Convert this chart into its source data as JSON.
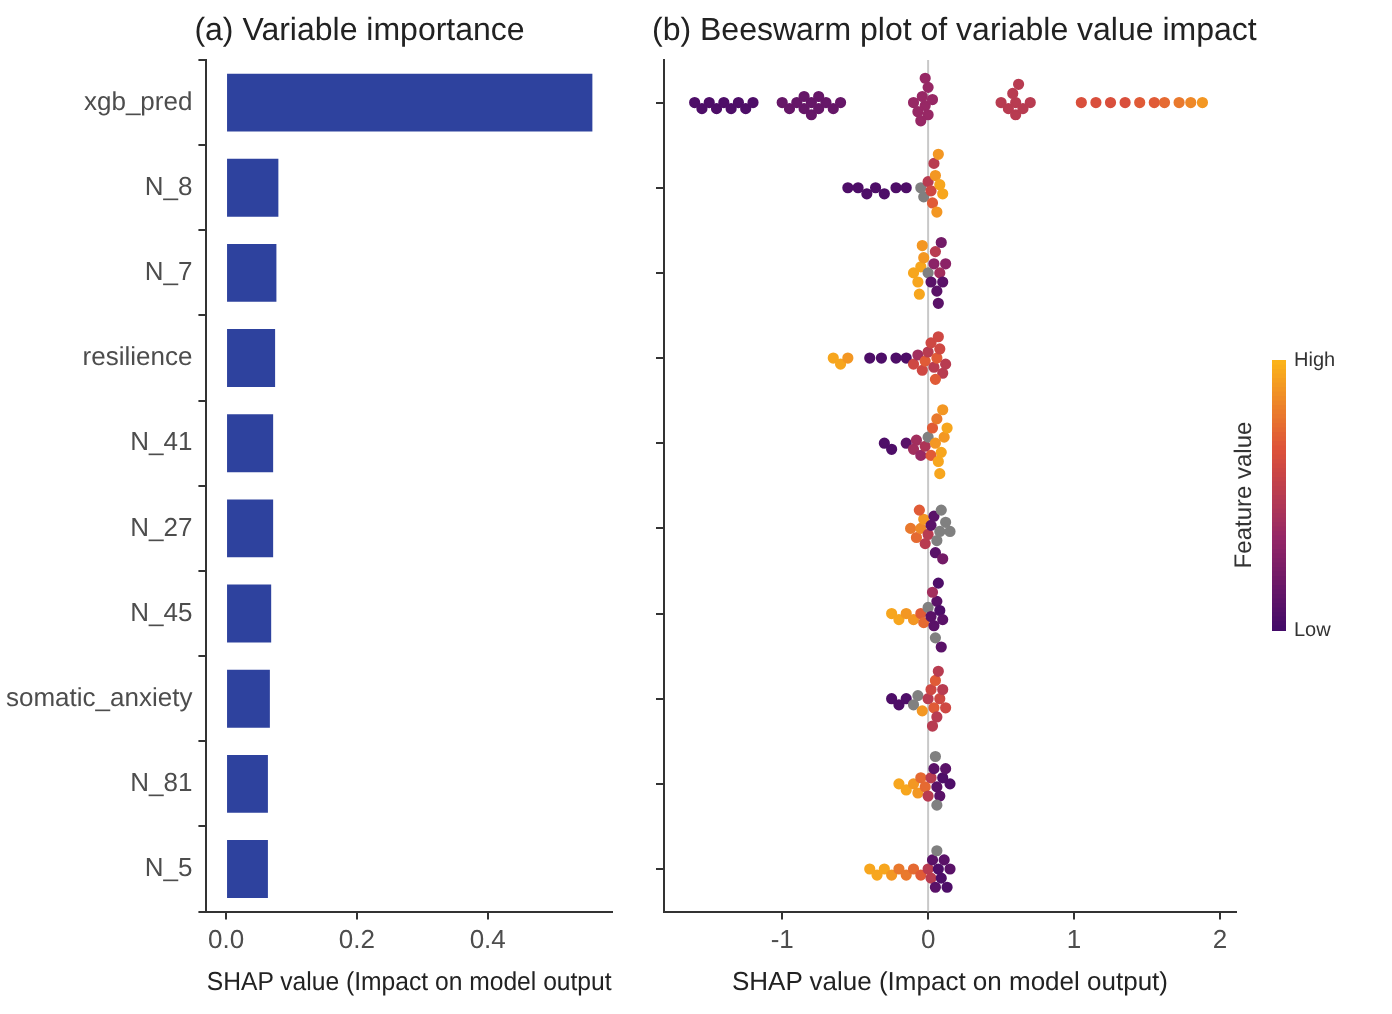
{
  "chart_data": [
    {
      "type": "bar",
      "title": "(a) Variable importance",
      "orientation": "horizontal",
      "categories": [
        "xgb_pred",
        "N_8",
        "N_7",
        "resilience",
        "N_41",
        "N_27",
        "N_45",
        "somatic_anxiety",
        "N_81",
        "N_5"
      ],
      "values": [
        0.56,
        0.08,
        0.077,
        0.075,
        0.072,
        0.072,
        0.069,
        0.067,
        0.064,
        0.064
      ],
      "color": "#2e429e",
      "xlabel": "SHAP value (Impact on model output",
      "xlim": [
        -0.03,
        0.59
      ],
      "xticks": [
        {
          "value": 0,
          "label": "0.0"
        },
        {
          "value": 0.2,
          "label": "0.2"
        },
        {
          "value": 0.4,
          "label": "0.4"
        }
      ],
      "grid": false,
      "legend": false
    },
    {
      "type": "scatter",
      "title": "(b) Beeswarm plot of variable value impact",
      "orientation": "horizontal",
      "categories": [
        "xgb_pred",
        "N_8",
        "N_7",
        "resilience",
        "N_41",
        "N_27",
        "N_45",
        "somatic_anxiety",
        "N_81",
        "N_5"
      ],
      "tick_labels": "x",
      "xlabel": "SHAP value (Impact on model output)",
      "xlim": [
        -1.81,
        2.11
      ],
      "xticks": [
        -1,
        0,
        1,
        2
      ],
      "grid": false,
      "legend": false,
      "marker": "circle",
      "clabel": "Feature value",
      "clim": [
        0,
        1
      ],
      "cticks": [
        {
          "value": 0,
          "label": "Low"
        },
        {
          "value": 1,
          "label": "High"
        }
      ],
      "ref_lines": [
        {
          "axis": "x",
          "value": 0,
          "color": "#c8c8c8"
        }
      ],
      "series": [
        {
          "type": "scatter",
          "x": [
            "xgb_pred",
            "xgb_pred",
            "xgb_pred",
            "xgb_pred",
            "xgb_pred",
            "xgb_pred",
            "xgb_pred",
            "xgb_pred",
            "xgb_pred",
            "xgb_pred",
            "xgb_pred",
            "xgb_pred",
            "xgb_pred",
            "xgb_pred",
            "xgb_pred",
            "xgb_pred",
            "xgb_pred",
            "xgb_pred",
            "xgb_pred",
            "xgb_pred",
            "xgb_pred",
            "xgb_pred",
            "xgb_pred",
            "xgb_pred",
            "xgb_pred",
            "xgb_pred",
            "xgb_pred",
            "xgb_pred",
            "xgb_pred",
            "xgb_pred",
            "xgb_pred",
            "xgb_pred",
            "xgb_pred",
            "xgb_pred",
            "xgb_pred",
            "xgb_pred",
            "xgb_pred",
            "xgb_pred",
            "xgb_pred",
            "xgb_pred",
            "xgb_pred",
            "xgb_pred",
            "xgb_pred",
            "xgb_pred",
            "xgb_pred",
            "xgb_pred",
            "xgb_pred",
            "xgb_pred",
            "N_8",
            "N_8",
            "N_8",
            "N_8",
            "N_8",
            "N_8",
            "N_8",
            "N_8",
            "N_8",
            "N_8",
            "N_8",
            "N_8",
            "N_8",
            "N_8",
            "N_8",
            "N_8",
            "N_8",
            "N_8",
            "N_7",
            "N_7",
            "N_7",
            "N_7",
            "N_7",
            "N_7",
            "N_7",
            "N_7",
            "N_7",
            "N_7",
            "N_7",
            "N_7",
            "N_7",
            "N_7",
            "N_7",
            "N_7",
            "resilience",
            "resilience",
            "resilience",
            "resilience",
            "resilience",
            "resilience",
            "resilience",
            "resilience",
            "resilience",
            "resilience",
            "resilience",
            "resilience",
            "resilience",
            "resilience",
            "resilience",
            "resilience",
            "resilience",
            "resilience",
            "resilience",
            "resilience",
            "N_41",
            "N_41",
            "N_41",
            "N_41",
            "N_41",
            "N_41",
            "N_41",
            "N_41",
            "N_41",
            "N_41",
            "N_41",
            "N_41",
            "N_41",
            "N_41",
            "N_41",
            "N_41",
            "N_41",
            "N_41",
            "N_27",
            "N_27",
            "N_27",
            "N_27",
            "N_27",
            "N_27",
            "N_27",
            "N_27",
            "N_27",
            "N_27",
            "N_27",
            "N_27",
            "N_27",
            "N_27",
            "N_27",
            "N_27",
            "N_45",
            "N_45",
            "N_45",
            "N_45",
            "N_45",
            "N_45",
            "N_45",
            "N_45",
            "N_45",
            "N_45",
            "N_45",
            "N_45",
            "N_45",
            "N_45",
            "N_45",
            "N_45",
            "somatic_anxiety",
            "somatic_anxiety",
            "somatic_anxiety",
            "somatic_anxiety",
            "somatic_anxiety",
            "somatic_anxiety",
            "somatic_anxiety",
            "somatic_anxiety",
            "somatic_anxiety",
            "somatic_anxiety",
            "somatic_anxiety",
            "somatic_anxiety",
            "somatic_anxiety",
            "somatic_anxiety",
            "somatic_anxiety",
            "somatic_anxiety",
            "N_81",
            "N_81",
            "N_81",
            "N_81",
            "N_81",
            "N_81",
            "N_81",
            "N_81",
            "N_81",
            "N_81",
            "N_81",
            "N_81",
            "N_81",
            "N_81",
            "N_81",
            "N_81",
            "N_5",
            "N_5",
            "N_5",
            "N_5",
            "N_5",
            "N_5",
            "N_5",
            "N_5",
            "N_5",
            "N_5",
            "N_5",
            "N_5",
            "N_5",
            "N_5",
            "N_5",
            "N_5",
            "N_5",
            "N_5"
          ],
          "values": [
            -1.6,
            -1.55,
            -1.5,
            -1.45,
            -1.4,
            -1.35,
            -1.3,
            -1.25,
            -1.2,
            -1.0,
            -0.95,
            -0.9,
            -0.85,
            -0.8,
            -0.8,
            -0.75,
            -0.7,
            -0.65,
            -0.6,
            -0.85,
            -0.75,
            -0.1,
            -0.07,
            -0.04,
            -0.02,
            0,
            0,
            0.03,
            -0.05,
            -0.02,
            0.5,
            0.55,
            0.6,
            0.6,
            0.65,
            0.7,
            0.58,
            0.62,
            1.05,
            1.15,
            1.25,
            1.35,
            1.45,
            1.55,
            1.62,
            1.72,
            1.8,
            1.88,
            -0.55,
            -0.48,
            -0.42,
            -0.36,
            -0.3,
            -0.22,
            -0.15,
            -0.05,
            -0.03,
            0,
            0.02,
            0.03,
            0.05,
            0.06,
            0.08,
            0.04,
            0.07,
            0.1,
            -0.1,
            -0.07,
            -0.05,
            -0.03,
            -0.06,
            -0.04,
            0,
            0.02,
            0.04,
            0.06,
            0.08,
            0.1,
            0.12,
            0.05,
            0.07,
            0.09,
            -0.65,
            -0.6,
            -0.55,
            -0.4,
            -0.32,
            -0.22,
            -0.15,
            -0.1,
            -0.07,
            -0.04,
            -0.02,
            0,
            0.02,
            0.04,
            0.06,
            0.08,
            0.1,
            0.12,
            0.05,
            0.07,
            -0.3,
            -0.25,
            -0.15,
            -0.1,
            -0.08,
            -0.05,
            -0.02,
            0,
            0.02,
            0.03,
            0.05,
            0.07,
            0.09,
            0.11,
            0.13,
            0.06,
            0.08,
            0.1,
            -0.12,
            -0.08,
            -0.05,
            -0.03,
            -0.02,
            -0.06,
            0,
            0.02,
            0.04,
            0.06,
            0.08,
            0.05,
            0.09,
            0.12,
            0.15,
            0.1,
            -0.25,
            -0.2,
            -0.15,
            -0.1,
            -0.05,
            -0.03,
            0,
            0.02,
            0.04,
            0.06,
            0.08,
            0.1,
            0.05,
            0.03,
            0.07,
            0.09,
            -0.25,
            -0.2,
            -0.15,
            -0.1,
            -0.07,
            -0.04,
            0,
            0.02,
            0.04,
            0.06,
            0.08,
            0.1,
            0.12,
            0.05,
            0.07,
            0.03,
            -0.2,
            -0.15,
            -0.1,
            -0.07,
            -0.05,
            -0.02,
            0,
            0.02,
            0.04,
            0.06,
            0.08,
            0.1,
            0.12,
            0.15,
            0.06,
            0.05,
            -0.4,
            -0.35,
            -0.3,
            -0.25,
            -0.2,
            -0.15,
            -0.1,
            -0.05,
            0,
            0.02,
            0.03,
            0.05,
            0.07,
            0.09,
            0.11,
            0.13,
            0.15,
            0.06
          ],
          "cvalues": [
            0.05,
            0.05,
            0.05,
            0.05,
            0.05,
            0.05,
            0.05,
            0.05,
            0.05,
            0.15,
            0.15,
            0.15,
            0.15,
            0.15,
            0.15,
            0.15,
            0.15,
            0.15,
            0.15,
            0.15,
            0.15,
            0.35,
            0.35,
            0.35,
            0.35,
            0.35,
            0.35,
            0.35,
            0.35,
            0.35,
            0.5,
            0.5,
            0.5,
            0.5,
            0.5,
            0.5,
            0.5,
            0.5,
            0.65,
            0.65,
            0.65,
            0.65,
            0.7,
            0.7,
            0.75,
            0.8,
            0.85,
            0.9,
            0.05,
            0.05,
            0.05,
            0.05,
            0.05,
            0.05,
            0.05,
            null,
            null,
            0.5,
            0.6,
            0.7,
            0.9,
            0.9,
            0.95,
            0.5,
            0.9,
            0.95,
            0.95,
            0.95,
            0.95,
            0.9,
            0.95,
            0.9,
            null,
            0.1,
            0.3,
            0.1,
            0.4,
            0.1,
            0.3,
            0.5,
            0.1,
            0.2,
            0.95,
            0.95,
            0.9,
            0.05,
            0.05,
            0.05,
            0.05,
            0.6,
            0.4,
            0.6,
            0.7,
            0.5,
            0.6,
            0.5,
            0.7,
            0.6,
            0.5,
            0.5,
            0.7,
            0.6,
            0.05,
            0.05,
            0.1,
            0.4,
            0.4,
            0.35,
            0.45,
            null,
            0.7,
            0.7,
            0.9,
            0.95,
            0.95,
            0.9,
            0.95,
            0.8,
            0.95,
            0.9,
            0.8,
            0.75,
            0.85,
            0.9,
            0.5,
            0.7,
            0.5,
            0.1,
            0.1,
            null,
            null,
            0.1,
            null,
            null,
            null,
            0.2,
            0.95,
            0.95,
            0.9,
            0.9,
            0.7,
            0.75,
            null,
            0.1,
            0.1,
            0.1,
            0.05,
            0.1,
            null,
            0.4,
            0.05,
            0.1,
            0.05,
            0.05,
            0.05,
            null,
            null,
            0.9,
            0.5,
            0.6,
            0.7,
            0.5,
            0.6,
            0.5,
            0.6,
            0.7,
            0.5,
            0.5,
            0.95,
            0.95,
            0.9,
            0.9,
            0.75,
            0.75,
            0.5,
            0.5,
            0.1,
            0.1,
            0.1,
            0.05,
            0.1,
            0.05,
            null,
            null,
            0.95,
            0.95,
            0.95,
            0.9,
            0.8,
            0.8,
            0.75,
            0.7,
            0.5,
            0.5,
            0.1,
            0.1,
            0.05,
            0.05,
            0.1,
            0.05,
            0.1,
            null
          ]
        }
      ]
    }
  ]
}
